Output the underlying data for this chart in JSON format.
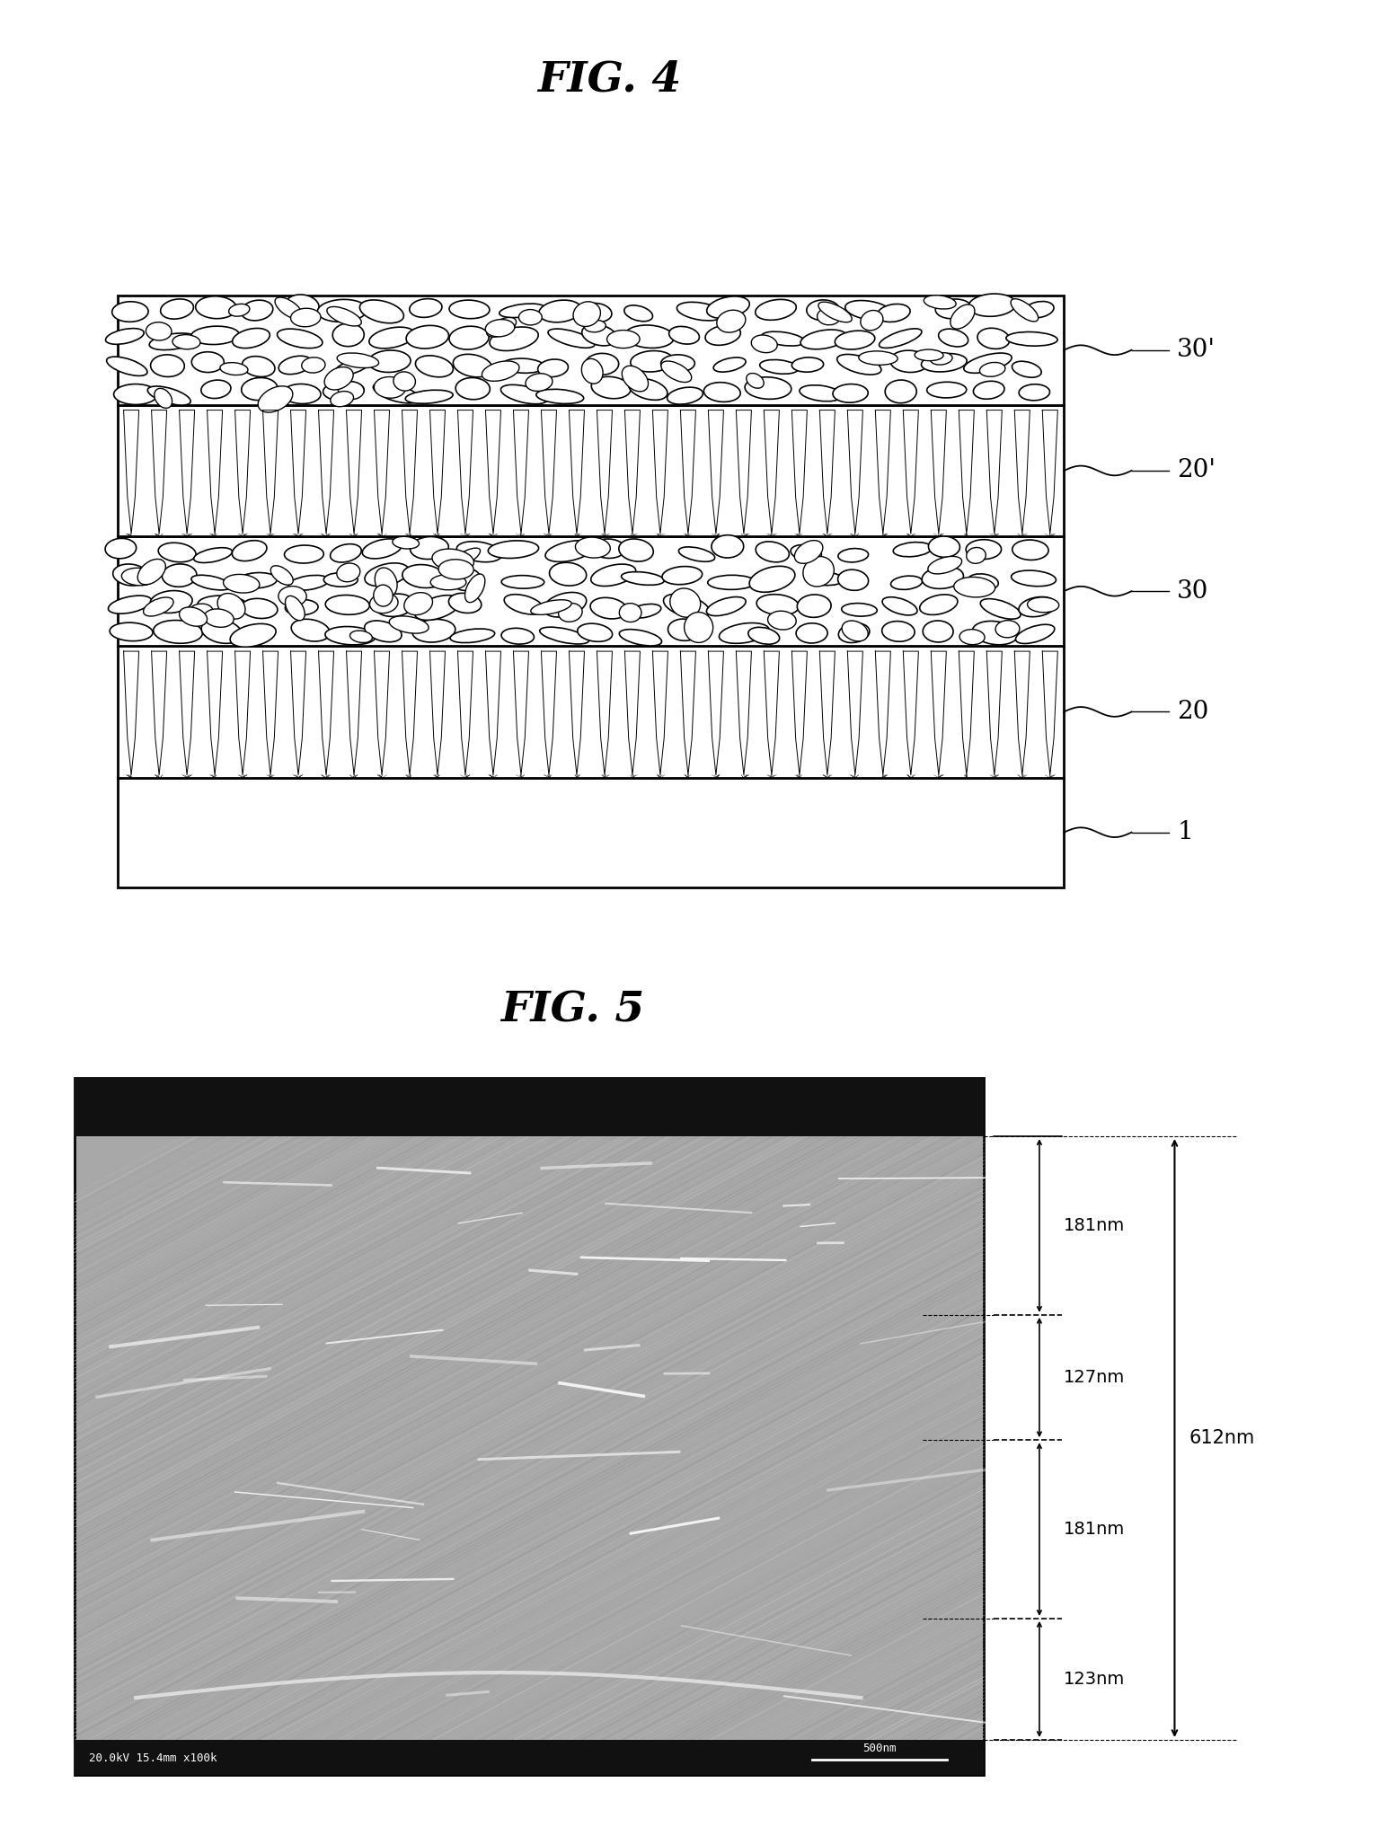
{
  "fig4_title": "FIG. 4",
  "fig5_title": "FIG. 5",
  "bg_color": "#ffffff",
  "fig4_labels": [
    "30'",
    "20'",
    "30",
    "20",
    "1"
  ],
  "fig5_measurements": {
    "top": "181nm",
    "second": "127nm",
    "third": "181nm",
    "bottom": "123nm",
    "total": "612nm"
  },
  "fig5_scale_text": "500nm",
  "fig5_em_text": "20.0kV 15.4mm x100k",
  "sem_bg_color": "#a8a8a8",
  "sem_dark_color": "#111111"
}
